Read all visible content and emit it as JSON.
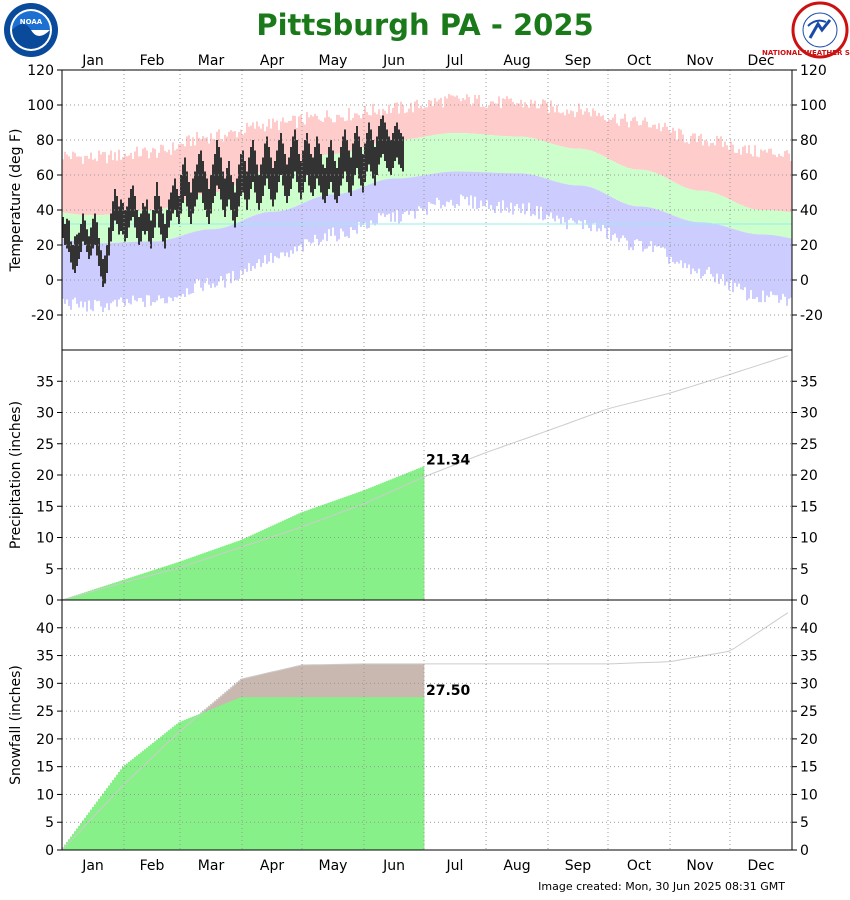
{
  "title": "Pittsburgh PA - 2025",
  "footer": "Image created: Mon, 30 Jun 2025 08:31 GMT",
  "logos": {
    "left": "NOAA",
    "right": "NATIONAL WEATHER SERVICE"
  },
  "colors": {
    "title": "#1a7a1a",
    "record_high": "#ffcccc",
    "normal_band": "#ccffcc",
    "record_low": "#ccccff",
    "observed": "#333333",
    "observed_precip": "#88f088",
    "normal_precip": "#c9b8b0",
    "normal_line": "#cccccc",
    "freezing_line": "#99eeee"
  },
  "chart_data": [
    {
      "type": "bar",
      "panel": "temperature",
      "ylabel": "Temperature (deg F)",
      "months": [
        "Jan",
        "Feb",
        "Mar",
        "Apr",
        "May",
        "Jun",
        "Jul",
        "Aug",
        "Sep",
        "Oct",
        "Nov",
        "Dec"
      ],
      "ylim": [
        -40,
        120
      ],
      "yticks": [
        -20,
        0,
        20,
        40,
        60,
        80,
        100,
        120
      ],
      "grid": true,
      "reference_line": 32,
      "normal_high_monthly": [
        37,
        40,
        50,
        63,
        72,
        80,
        84,
        82,
        75,
        63,
        51,
        40
      ],
      "normal_low_monthly": [
        21,
        22,
        29,
        39,
        49,
        58,
        62,
        61,
        54,
        42,
        33,
        26
      ],
      "record_high_monthly": [
        70,
        73,
        82,
        89,
        94,
        98,
        103,
        101,
        97,
        90,
        80,
        73
      ],
      "record_low_monthly": [
        -15,
        -12,
        -2,
        12,
        26,
        36,
        45,
        41,
        32,
        20,
        4,
        -10
      ],
      "observed_daily_high": [
        36,
        32,
        35,
        34,
        22,
        20,
        25,
        26,
        27,
        32,
        38,
        34,
        29,
        25,
        30,
        35,
        38,
        33,
        24,
        17,
        12,
        14,
        20,
        30,
        38,
        45,
        52,
        48,
        42,
        46,
        44,
        40,
        42,
        47,
        52,
        54,
        48,
        40,
        36,
        38,
        44,
        42,
        46,
        38,
        34,
        40,
        48,
        56,
        48,
        42,
        38,
        32,
        40,
        46,
        50,
        54,
        58,
        52,
        48,
        60,
        66,
        70,
        62,
        56,
        50,
        58,
        62,
        66,
        72,
        74,
        68,
        62,
        58,
        52,
        60,
        66,
        72,
        80,
        76,
        70,
        62,
        58,
        64,
        68,
        60,
        56,
        50,
        58,
        66,
        72,
        74,
        68,
        62,
        70,
        76,
        80,
        74,
        66,
        60,
        66,
        70,
        78,
        82,
        76,
        70,
        64,
        68,
        74,
        80,
        84,
        78,
        72,
        66,
        70,
        76,
        82,
        86,
        80,
        72,
        68,
        74,
        80,
        84,
        78,
        72,
        70,
        76,
        82,
        78,
        72,
        66,
        64,
        70,
        76,
        80,
        74,
        68,
        64,
        70,
        76,
        82,
        86,
        80,
        74,
        70,
        78,
        84,
        88,
        82,
        76,
        72,
        78,
        84,
        90,
        86,
        80,
        76,
        82,
        88,
        92,
        94,
        90,
        86,
        82,
        80,
        84,
        88,
        90,
        86,
        84,
        82
      ],
      "observed_daily_low": [
        24,
        20,
        18,
        16,
        10,
        6,
        4,
        8,
        12,
        16,
        22,
        20,
        16,
        12,
        14,
        18,
        20,
        14,
        8,
        2,
        -4,
        -2,
        4,
        14,
        22,
        28,
        34,
        32,
        26,
        28,
        26,
        22,
        24,
        30,
        34,
        36,
        30,
        24,
        20,
        22,
        28,
        26,
        28,
        22,
        18,
        24,
        30,
        38,
        30,
        26,
        22,
        18,
        24,
        30,
        34,
        38,
        40,
        36,
        32,
        38,
        44,
        48,
        42,
        36,
        32,
        38,
        42,
        46,
        50,
        50,
        44,
        40,
        36,
        32,
        38,
        44,
        48,
        54,
        52,
        46,
        40,
        36,
        42,
        46,
        40,
        34,
        30,
        36,
        42,
        48,
        50,
        46,
        40,
        46,
        52,
        56,
        50,
        44,
        40,
        44,
        48,
        54,
        58,
        52,
        46,
        42,
        46,
        50,
        56,
        60,
        54,
        48,
        44,
        48,
        52,
        58,
        62,
        56,
        50,
        46,
        50,
        56,
        60,
        54,
        50,
        48,
        52,
        58,
        54,
        50,
        46,
        44,
        48,
        52,
        56,
        50,
        46,
        44,
        48,
        54,
        58,
        62,
        56,
        50,
        48,
        54,
        60,
        64,
        58,
        54,
        50,
        56,
        62,
        66,
        62,
        58,
        54,
        60,
        66,
        70,
        72,
        68,
        64,
        62,
        60,
        64,
        68,
        70,
        66,
        64,
        62
      ]
    },
    {
      "type": "area",
      "panel": "precipitation",
      "ylabel": "Precipitation (inches)",
      "ylim": [
        0,
        40
      ],
      "yticks": [
        0,
        5,
        10,
        15,
        20,
        25,
        30,
        35
      ],
      "grid": true,
      "annotation": "21.34",
      "observed_total": 21.34,
      "observed_cumulative_by_month_end": [
        3.2,
        6.1,
        9.6,
        14.0,
        17.5,
        21.34
      ],
      "normal_cumulative_by_month_end": [
        2.8,
        5.2,
        8.5,
        11.7,
        15.4,
        19.7,
        23.6,
        27.1,
        30.6,
        33.1,
        36.1,
        39.3
      ]
    },
    {
      "type": "area",
      "panel": "snowfall",
      "ylabel": "Snowfall (inches)",
      "ylim": [
        0,
        45
      ],
      "yticks": [
        0,
        5,
        10,
        15,
        20,
        25,
        30,
        35,
        40
      ],
      "grid": true,
      "annotation": "27.50",
      "observed_total": 27.5,
      "observed_cumulative_by_month_end": [
        15.0,
        23.0,
        27.5,
        27.5,
        27.5,
        27.5
      ],
      "normal_cumulative_by_month_end": [
        11.8,
        21.4,
        30.8,
        33.3,
        33.5,
        33.5,
        33.5,
        33.5,
        33.5,
        33.9,
        35.8,
        43.2
      ]
    }
  ]
}
